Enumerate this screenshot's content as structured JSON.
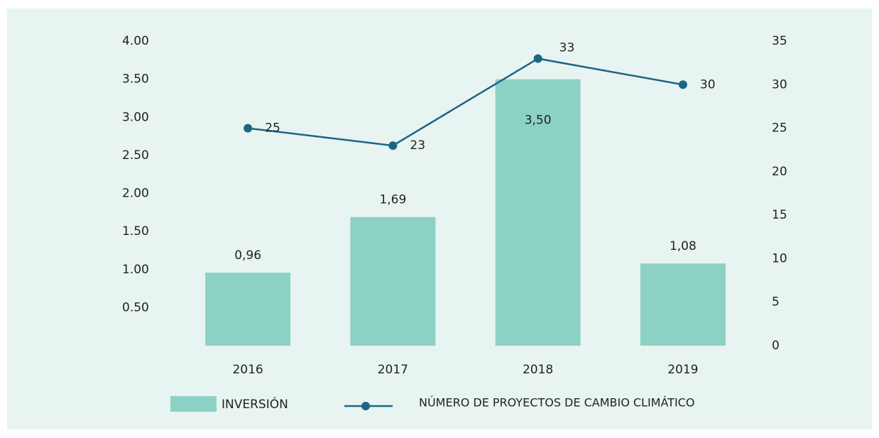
{
  "chart_data": {
    "type": "bar",
    "categories": [
      "2016",
      "2017",
      "2018",
      "2019"
    ],
    "series": [
      {
        "name": "INVERSIÓN",
        "type": "bar",
        "color": "#8dd1c5",
        "values": [
          0.96,
          1.69,
          3.5,
          1.08
        ],
        "value_labels": [
          "0,96",
          "1,69",
          "3,50",
          "1,08"
        ]
      },
      {
        "name": "NÚMERO DE PROYECTOS DE CAMBIO CLIMÁTICO",
        "type": "line",
        "axis": "y2",
        "color": "#1c6583",
        "values": [
          25,
          23,
          33,
          30
        ]
      }
    ],
    "ylim": [
      0,
      4
    ],
    "yticks": [
      {
        "value": 0.5,
        "label": "0.50"
      },
      {
        "value": 1,
        "label": "1.00"
      },
      {
        "value": 1.5,
        "label": "1.50"
      },
      {
        "value": 2,
        "label": "2.00"
      },
      {
        "value": 2.5,
        "label": "2.50"
      },
      {
        "value": 3,
        "label": "3.00"
      },
      {
        "value": 3.5,
        "label": "3.50"
      },
      {
        "value": 4,
        "label": "4.00"
      }
    ],
    "y2lim": [
      0,
      35
    ],
    "y2ticks": [
      0,
      5,
      10,
      15,
      20,
      25,
      30,
      35
    ]
  }
}
